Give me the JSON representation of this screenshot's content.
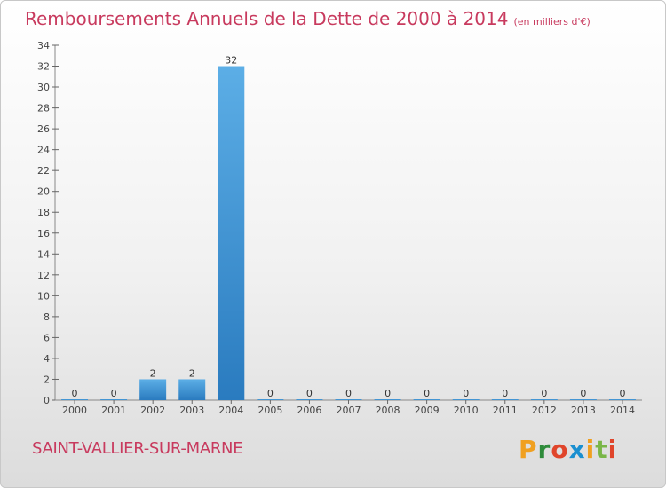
{
  "header": {
    "title": "Remboursements Annuels de la Dette de 2000 à 2014",
    "unit": "(en milliers d'€)"
  },
  "footer": {
    "commune": "SAINT-VALLIER-SUR-MARNE",
    "logo": "Proxiti"
  },
  "colors": {
    "title": "#c83a5e",
    "bar_light": "#5caee6",
    "bar_dark": "#2a7bbf",
    "logo_letters": [
      "#f0a020",
      "#2e8b3a",
      "#e0452b",
      "#1a8fd0",
      "#f0a020",
      "#7ab648",
      "#e0452b"
    ]
  },
  "chart_data": {
    "type": "bar",
    "title": "Remboursements Annuels de la Dette de 2000 à 2014",
    "ylabel": "en milliers d'€",
    "xlabel": "",
    "ylim": [
      0,
      34
    ],
    "yticks": [
      0,
      2,
      4,
      6,
      8,
      10,
      12,
      14,
      16,
      18,
      20,
      22,
      24,
      26,
      28,
      30,
      32,
      34
    ],
    "grid": false,
    "categories": [
      "2000",
      "2001",
      "2002",
      "2003",
      "2004",
      "2005",
      "2006",
      "2007",
      "2008",
      "2009",
      "2010",
      "2011",
      "2012",
      "2013",
      "2014"
    ],
    "values": [
      0,
      0,
      2,
      2,
      32,
      0,
      0,
      0,
      0,
      0,
      0,
      0,
      0,
      0,
      0
    ],
    "value_labels": [
      "0",
      "0",
      "2",
      "2",
      "32",
      "0",
      "0",
      "0",
      "0",
      "0",
      "0",
      "0",
      "0",
      "0",
      "0"
    ]
  }
}
